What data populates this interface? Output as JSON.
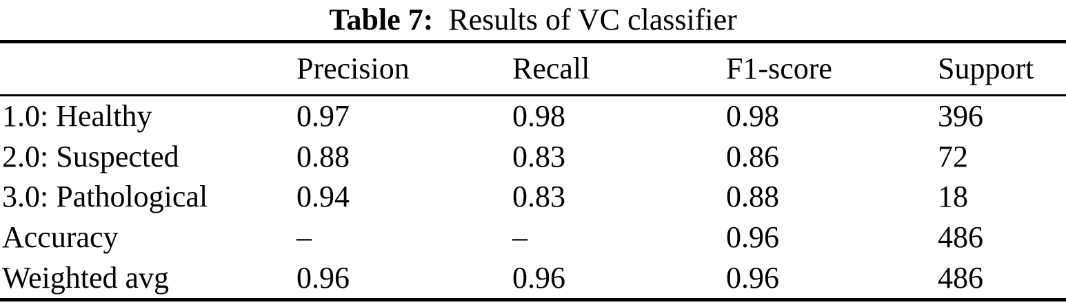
{
  "caption": {
    "label": "Table 7:",
    "text": "Results of VC classifier"
  },
  "table": {
    "columns": [
      "Precision",
      "Recall",
      "F1-score",
      "Support"
    ],
    "rows": [
      {
        "label": "1.0: Healthy",
        "cells": [
          "0.97",
          "0.98",
          "0.98",
          "396"
        ]
      },
      {
        "label": "2.0: Suspected",
        "cells": [
          "0.88",
          "0.83",
          "0.86",
          "72"
        ]
      },
      {
        "label": "3.0: Pathological",
        "cells": [
          "0.94",
          "0.83",
          "0.88",
          "18"
        ]
      },
      {
        "label": "Accuracy",
        "cells": [
          "–",
          "–",
          "0.96",
          "486"
        ]
      },
      {
        "label": "Weighted avg",
        "cells": [
          "0.96",
          "0.96",
          "0.96",
          "486"
        ]
      }
    ]
  },
  "colors": {
    "text": "#000000",
    "background": "#ffffff",
    "rule": "#000000"
  }
}
